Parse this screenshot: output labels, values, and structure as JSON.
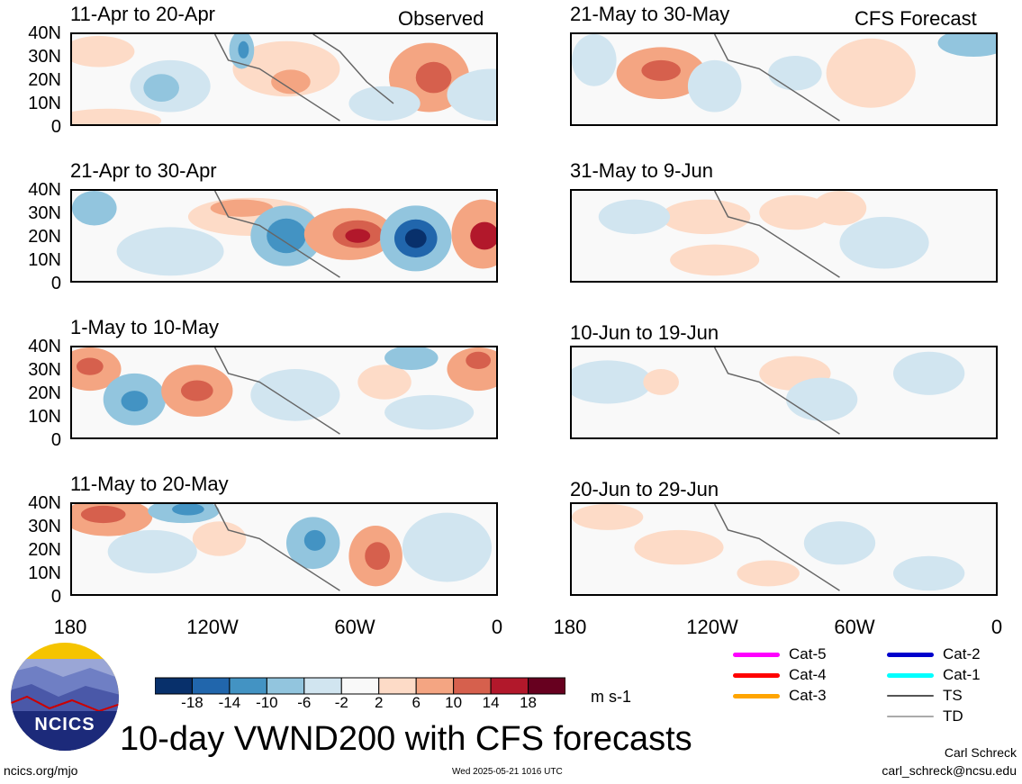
{
  "header": {
    "observed_label": "Observed",
    "forecast_label": "CFS Forecast"
  },
  "panels": {
    "observed": [
      {
        "title": "11-Apr to 20-Apr"
      },
      {
        "title": "21-Apr to 30-Apr"
      },
      {
        "title": "1-May to 10-May"
      },
      {
        "title": "11-May to 20-May"
      }
    ],
    "forecast": [
      {
        "title": "21-May to 30-May"
      },
      {
        "title": "31-May to 9-Jun"
      },
      {
        "title": "10-Jun to 19-Jun"
      },
      {
        "title": "20-Jun to 29-Jun"
      }
    ]
  },
  "axes": {
    "lat_ticks": [
      "40N",
      "30N",
      "20N",
      "10N",
      "0"
    ],
    "lon_ticks": [
      "180",
      "120W",
      "60W",
      "0"
    ]
  },
  "colorbar": {
    "levels": [
      -18,
      -14,
      -10,
      -6,
      -2,
      2,
      6,
      10,
      14,
      18
    ],
    "tick_labels": [
      "-18",
      "-14",
      "-10",
      "-6",
      "-2",
      "2",
      "6",
      "10",
      "14",
      "18"
    ],
    "colors": [
      "#08306b",
      "#2166ac",
      "#4393c3",
      "#92c5de",
      "#d1e5f0",
      "#f9f9f9",
      "#fddbc7",
      "#f4a582",
      "#d6604d",
      "#b2182b",
      "#67001f"
    ],
    "unit": "m s-1"
  },
  "legend": {
    "items": [
      {
        "label": "Cat-5",
        "color": "#ff00ff"
      },
      {
        "label": "Cat-4",
        "color": "#ff0000"
      },
      {
        "label": "Cat-3",
        "color": "#ffa500"
      },
      {
        "label": "Cat-2",
        "color": "#0000cc"
      },
      {
        "label": "Cat-1",
        "color": "#00ffff"
      },
      {
        "label": "TS",
        "color": "#555555"
      },
      {
        "label": "TD",
        "color": "#aaaaaa"
      }
    ]
  },
  "main_title": "10-day VWND200 with CFS forecasts",
  "logo": {
    "text": "NCICS"
  },
  "footer": {
    "url": "ncics.org/mjo",
    "timestamp": "Wed 2025-05-21 1016 UTC",
    "author": "Carl Schreck",
    "email": "carl_schreck@ncsu.edu"
  }
}
